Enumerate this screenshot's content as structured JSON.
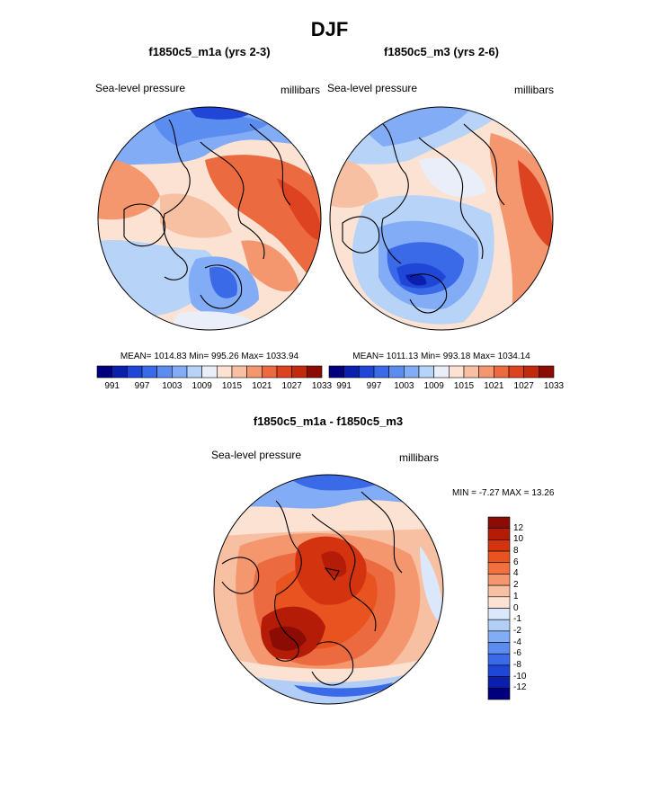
{
  "page": {
    "title": "DJF"
  },
  "panels": [
    {
      "title": "f1850c5_m1a (yrs 2-3)",
      "left_label": "Sea-level pressure",
      "right_label": "millibars",
      "stats": "MEAN= 1014.83  Min= 995.26  Max= 1033.94"
    },
    {
      "title": "f1850c5_m3 (yrs 2-6)",
      "left_label": "Sea-level pressure",
      "right_label": "millibars",
      "stats": "MEAN= 1011.13  Min= 993.18  Max= 1034.14"
    }
  ],
  "diff_panel": {
    "title": "f1850c5_m1a - f1850c5_m3",
    "left_label": "Sea-level pressure",
    "right_label": "millibars",
    "minmax": "MIN =  -7.27 MAX =  13.26"
  },
  "colorbar_top": {
    "labels": [
      "991",
      "997",
      "1003",
      "1009",
      "1015",
      "1021",
      "1027",
      "1033"
    ],
    "colors": [
      "#00007f",
      "#0a1fad",
      "#1f46d6",
      "#3a6ae8",
      "#5b8cf0",
      "#82acf5",
      "#b7d3f7",
      "#e9eef8",
      "#fbe2d3",
      "#f8c0a3",
      "#f4976f",
      "#ec6a3f",
      "#dd4320",
      "#c22a0e",
      "#8a0c04"
    ]
  },
  "colorbar_diff": {
    "labels": [
      "12",
      "10",
      "8",
      "6",
      "4",
      "2",
      "1",
      "0",
      "-1",
      "-2",
      "-4",
      "-6",
      "-8",
      "-10",
      "-12"
    ],
    "colors": [
      "#8a0c04",
      "#b51c08",
      "#d3340f",
      "#e9531f",
      "#f0713f",
      "#f4976f",
      "#f8c0a3",
      "#fbe2d3",
      "#dbe8fb",
      "#b2cdf6",
      "#82acf5",
      "#5b8cf0",
      "#3a6ae8",
      "#1f46d6",
      "#0a1fad",
      "#00007f"
    ]
  },
  "chart_data": [
    {
      "type": "heatmap",
      "title": "f1850c5_m1a (yrs 2-3)",
      "variable": "Sea-level pressure",
      "units": "millibars",
      "projection": "north polar stereographic",
      "mean": 1014.83,
      "min": 995.26,
      "max": 1033.94,
      "contour_levels": [
        991,
        994,
        997,
        1000,
        1003,
        1006,
        1009,
        1012,
        1015,
        1018,
        1021,
        1024,
        1027,
        1030,
        1033
      ]
    },
    {
      "type": "heatmap",
      "title": "f1850c5_m3 (yrs 2-6)",
      "variable": "Sea-level pressure",
      "units": "millibars",
      "projection": "north polar stereographic",
      "mean": 1011.13,
      "min": 993.18,
      "max": 1034.14,
      "contour_levels": [
        991,
        994,
        997,
        1000,
        1003,
        1006,
        1009,
        1012,
        1015,
        1018,
        1021,
        1024,
        1027,
        1030,
        1033
      ]
    },
    {
      "type": "heatmap",
      "title": "f1850c5_m1a - f1850c5_m3",
      "variable": "Sea-level pressure",
      "units": "millibars",
      "projection": "north polar stereographic",
      "min": -7.27,
      "max": 13.26,
      "contour_levels": [
        -12,
        -10,
        -8,
        -6,
        -4,
        -2,
        -1,
        0,
        1,
        2,
        4,
        6,
        8,
        10,
        12
      ]
    }
  ]
}
